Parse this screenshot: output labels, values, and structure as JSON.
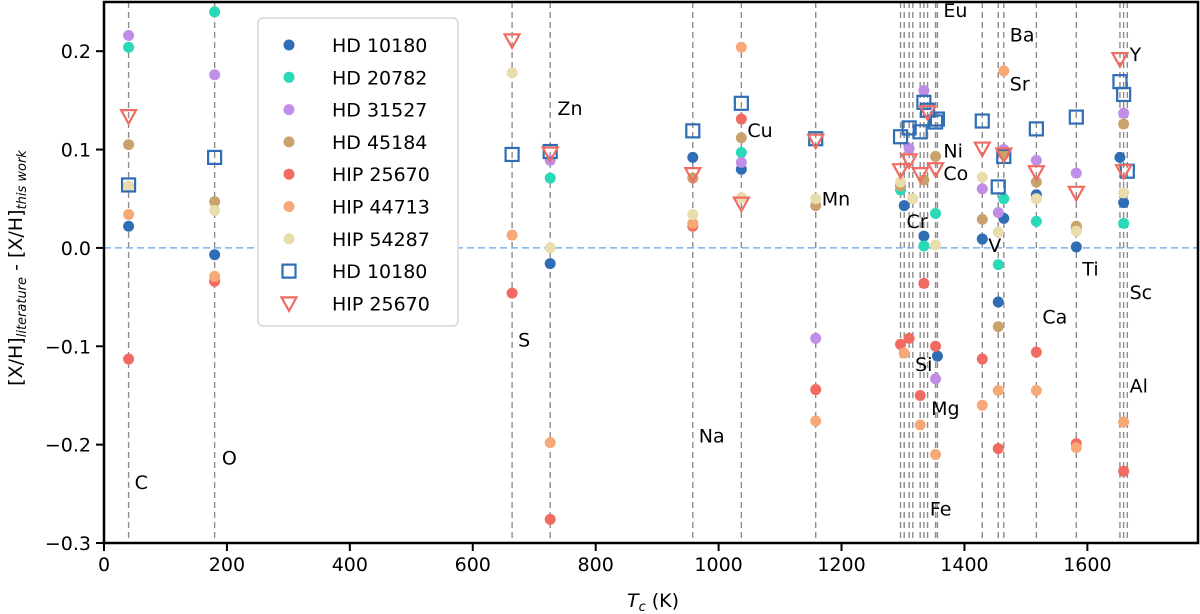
{
  "chart_data": {
    "type": "scatter",
    "title": "",
    "xlabel_main": "T",
    "xlabel_sub": "c",
    "xlabel_unit": " (K)",
    "ylabel_prefix": "[X/H]",
    "ylabel_sub1": "literature",
    "ylabel_mid": " - [X/H]",
    "ylabel_sub2": "this work",
    "xlim": [
      0,
      1780
    ],
    "ylim": [
      -0.3,
      0.25
    ],
    "xticks": [
      0,
      200,
      400,
      600,
      800,
      1000,
      1200,
      1400,
      1600
    ],
    "xtick_labels": [
      "0",
      "200",
      "400",
      "600",
      "800",
      "1000",
      "1200",
      "1400",
      "1600"
    ],
    "yticks": [
      -0.3,
      -0.2,
      -0.1,
      0.0,
      0.1,
      0.2
    ],
    "ytick_labels": [
      "−0.3",
      "−0.2",
      "−0.1",
      "0.0",
      "0.1",
      "0.2"
    ],
    "zero_line": 0.0,
    "element_lines": [
      40,
      180,
      664,
      726,
      958,
      1037,
      1158,
      1296,
      1302,
      1310,
      1316,
      1328,
      1334,
      1340,
      1353,
      1356,
      1429,
      1455,
      1464,
      1517,
      1582,
      1653,
      1659,
      1665
    ],
    "element_labels": [
      {
        "text": "C",
        "x": 40,
        "y": -0.245
      },
      {
        "text": "O",
        "x": 182,
        "y": -0.22
      },
      {
        "text": "S",
        "x": 664,
        "y": -0.1
      },
      {
        "text": "Zn",
        "x": 728,
        "y": 0.135
      },
      {
        "text": "Na",
        "x": 958,
        "y": -0.198
      },
      {
        "text": "Cu",
        "x": 1037,
        "y": 0.113
      },
      {
        "text": "Mn",
        "x": 1158,
        "y": 0.043
      },
      {
        "text": "Cr",
        "x": 1296,
        "y": 0.02
      },
      {
        "text": "Si",
        "x": 1310,
        "y": -0.125
      },
      {
        "text": "Mg",
        "x": 1336,
        "y": -0.17
      },
      {
        "text": "Fe",
        "x": 1334,
        "y": -0.272
      },
      {
        "text": "Eu",
        "x": 1356,
        "y": 0.235
      },
      {
        "text": "Ni",
        "x": 1356,
        "y": 0.092
      },
      {
        "text": "Co",
        "x": 1356,
        "y": 0.069
      },
      {
        "text": "V",
        "x": 1429,
        "y": -0.004
      },
      {
        "text": "Ba",
        "x": 1464,
        "y": 0.21
      },
      {
        "text": "Sr",
        "x": 1464,
        "y": 0.16
      },
      {
        "text": "Ca",
        "x": 1517,
        "y": -0.077
      },
      {
        "text": "Ti",
        "x": 1582,
        "y": -0.028
      },
      {
        "text": "Sc",
        "x": 1659,
        "y": -0.052
      },
      {
        "text": "Al",
        "x": 1659,
        "y": -0.147
      },
      {
        "text": "Y",
        "x": 1659,
        "y": 0.19
      }
    ],
    "legend_position": "top-left-center",
    "series": [
      {
        "name": "HD 10180",
        "marker": "circle",
        "color": "#2f6db5",
        "x": [
          40,
          180,
          726,
          958,
          1037,
          1302,
          1334,
          1356,
          1429,
          1455,
          1464,
          1517,
          1582,
          1653,
          1659
        ],
        "y": [
          0.022,
          -0.007,
          -0.016,
          0.092,
          0.08,
          0.043,
          0.012,
          -0.11,
          0.009,
          -0.055,
          0.03,
          0.054,
          0.001,
          0.092,
          0.046
        ]
      },
      {
        "name": "HD 20782",
        "marker": "circle",
        "color": "#2ad9b8",
        "x": [
          40,
          180,
          726,
          1037,
          1296,
          1334,
          1353,
          1455,
          1464,
          1517,
          1582,
          1659
        ],
        "y": [
          0.204,
          0.24,
          0.071,
          0.097,
          0.059,
          0.002,
          0.035,
          -0.017,
          0.05,
          0.027,
          0.02,
          0.025
        ]
      },
      {
        "name": "HD 31527",
        "marker": "circle",
        "color": "#c08ee6",
        "x": [
          40,
          180,
          726,
          1037,
          1158,
          1310,
          1334,
          1353,
          1429,
          1455,
          1464,
          1517,
          1582,
          1659
        ],
        "y": [
          0.216,
          0.176,
          0.089,
          0.087,
          -0.092,
          0.101,
          0.16,
          -0.133,
          0.06,
          0.036,
          0.1,
          0.089,
          0.076,
          0.137
        ]
      },
      {
        "name": "HD 45184",
        "marker": "circle",
        "color": "#c9a26e",
        "x": [
          40,
          180,
          958,
          1037,
          1158,
          1296,
          1334,
          1353,
          1429,
          1455,
          1464,
          1517,
          1582,
          1659
        ],
        "y": [
          0.105,
          0.047,
          0.071,
          0.112,
          0.043,
          0.063,
          0.069,
          0.093,
          0.029,
          -0.08,
          0.095,
          0.067,
          0.022,
          0.126
        ]
      },
      {
        "name": "HIP 25670",
        "marker": "circle",
        "color": "#f26b63",
        "x": [
          40,
          180,
          664,
          726,
          958,
          1037,
          1158,
          1296,
          1310,
          1328,
          1334,
          1353,
          1429,
          1455,
          1517,
          1582,
          1659
        ],
        "y": [
          -0.113,
          -0.034,
          -0.046,
          -0.276,
          0.022,
          0.131,
          -0.144,
          -0.098,
          -0.092,
          -0.15,
          -0.036,
          -0.1,
          -0.113,
          -0.204,
          -0.106,
          -0.199,
          -0.227
        ]
      },
      {
        "name": "HIP 44713",
        "marker": "circle",
        "color": "#f7a877",
        "x": [
          40,
          180,
          664,
          726,
          958,
          1037,
          1158,
          1302,
          1328,
          1353,
          1429,
          1455,
          1464,
          1517,
          1582,
          1659
        ],
        "y": [
          0.034,
          -0.029,
          0.013,
          -0.198,
          0.025,
          0.204,
          -0.176,
          -0.107,
          -0.18,
          -0.21,
          -0.16,
          -0.145,
          0.18,
          -0.145,
          -0.203,
          -0.177
        ]
      },
      {
        "name": "HIP 54287",
        "marker": "circle",
        "color": "#e8ddab",
        "x": [
          40,
          180,
          664,
          726,
          958,
          1037,
          1158,
          1296,
          1316,
          1353,
          1429,
          1455,
          1517,
          1582,
          1659
        ],
        "y": [
          0.063,
          0.038,
          0.178,
          0.0,
          0.034,
          0.051,
          0.05,
          0.067,
          0.05,
          0.003,
          0.072,
          0.016,
          0.05,
          0.017,
          0.056
        ]
      },
      {
        "name": "HD 10180",
        "marker": "square",
        "color": "#2f6db5",
        "x": [
          40,
          180,
          664,
          726,
          958,
          1037,
          1158,
          1296,
          1310,
          1328,
          1334,
          1340,
          1353,
          1356,
          1429,
          1455,
          1464,
          1517,
          1582,
          1653,
          1659,
          1665
        ],
        "y": [
          0.064,
          0.092,
          0.095,
          0.098,
          0.119,
          0.147,
          0.111,
          0.113,
          0.122,
          0.118,
          0.148,
          0.14,
          0.128,
          0.131,
          0.129,
          0.062,
          0.093,
          0.121,
          0.133,
          0.169,
          0.156,
          0.078
        ]
      },
      {
        "name": "HIP 25670",
        "marker": "triangle-down",
        "color": "#f26b63",
        "x": [
          40,
          664,
          726,
          958,
          1037,
          1158,
          1296,
          1310,
          1328,
          1340,
          1353,
          1429,
          1464,
          1517,
          1582,
          1653,
          1659
        ],
        "y": [
          0.134,
          0.211,
          0.096,
          0.075,
          0.045,
          0.109,
          0.079,
          0.089,
          0.075,
          0.138,
          0.08,
          0.101,
          0.095,
          0.077,
          0.056,
          0.192,
          0.078
        ]
      }
    ]
  }
}
